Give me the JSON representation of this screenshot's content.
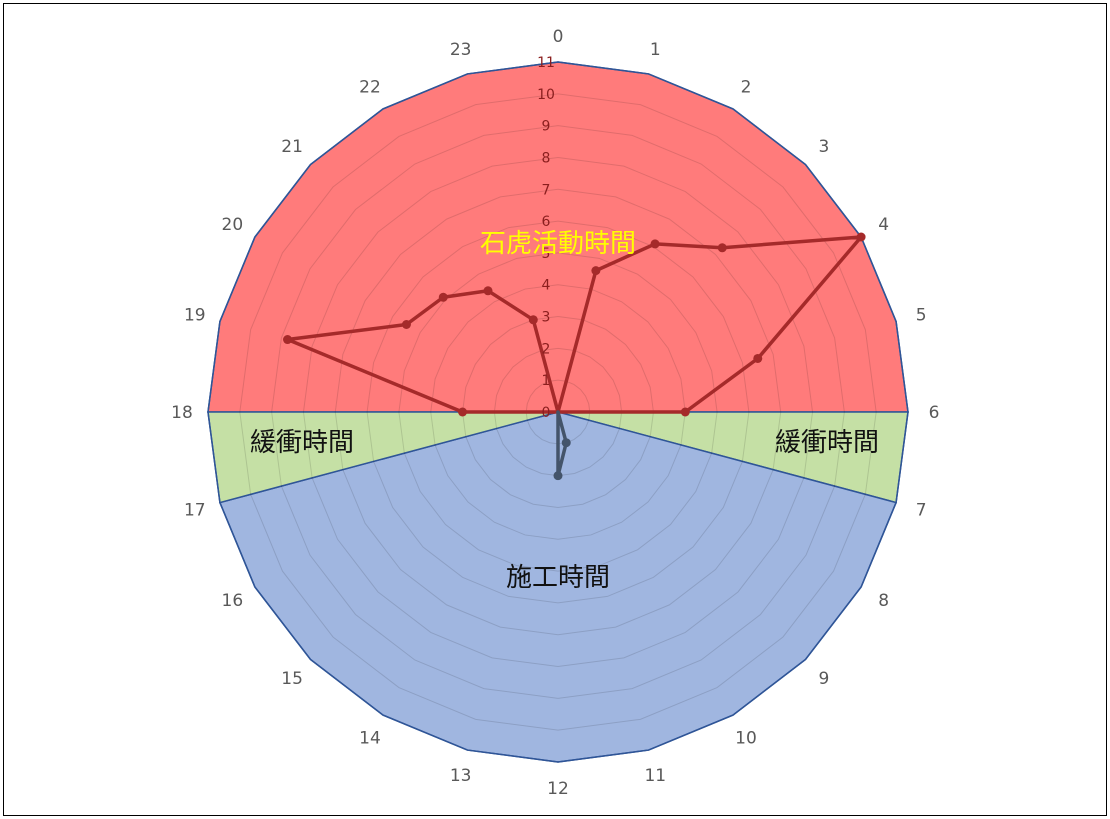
{
  "chart_data": {
    "type": "radar",
    "categories": [
      "0",
      "1",
      "2",
      "3",
      "4",
      "5",
      "6",
      "7",
      "8",
      "9",
      "10",
      "11",
      "12",
      "13",
      "14",
      "15",
      "16",
      "17",
      "18",
      "19",
      "20",
      "21",
      "22",
      "23"
    ],
    "r_ticks": [
      "0",
      "1",
      "2",
      "3",
      "4",
      "5",
      "6",
      "7",
      "8",
      "9",
      "10",
      "11"
    ],
    "rlim": [
      0,
      11
    ],
    "grid": true,
    "regions": [
      {
        "label": "石虎活動時間",
        "from_hour": 18,
        "to_hour": 6,
        "color": "#ff7b7b",
        "label_color": "#ffff00"
      },
      {
        "label": "緩衝時間",
        "from_hour": 6,
        "to_hour": 7,
        "color": "#c5e0a5",
        "label_color": "#111111"
      },
      {
        "label": "施工時間",
        "from_hour": 7,
        "to_hour": 17,
        "color": "#a0b6e0",
        "label_color": "#111111"
      },
      {
        "label": "緩衝時間",
        "from_hour": 17,
        "to_hour": 18,
        "color": "#c5e0a5",
        "label_color": "#111111"
      }
    ],
    "series": [
      {
        "values": [
          0,
          4.6,
          6.1,
          7.3,
          11,
          6.5,
          4.0,
          0,
          0,
          0,
          0,
          0,
          0,
          0,
          0,
          0,
          0,
          0,
          3.0,
          8.8,
          5.5,
          5.1,
          4.4,
          3.0
        ],
        "color": "#a52a2a"
      },
      {
        "values": [
          0,
          0,
          0,
          0,
          0,
          0,
          0,
          0,
          0,
          0,
          0,
          1.0,
          2.0,
          0,
          0,
          0,
          0,
          0,
          0,
          0,
          0,
          0,
          0,
          0
        ],
        "color": "#44546a"
      }
    ]
  }
}
